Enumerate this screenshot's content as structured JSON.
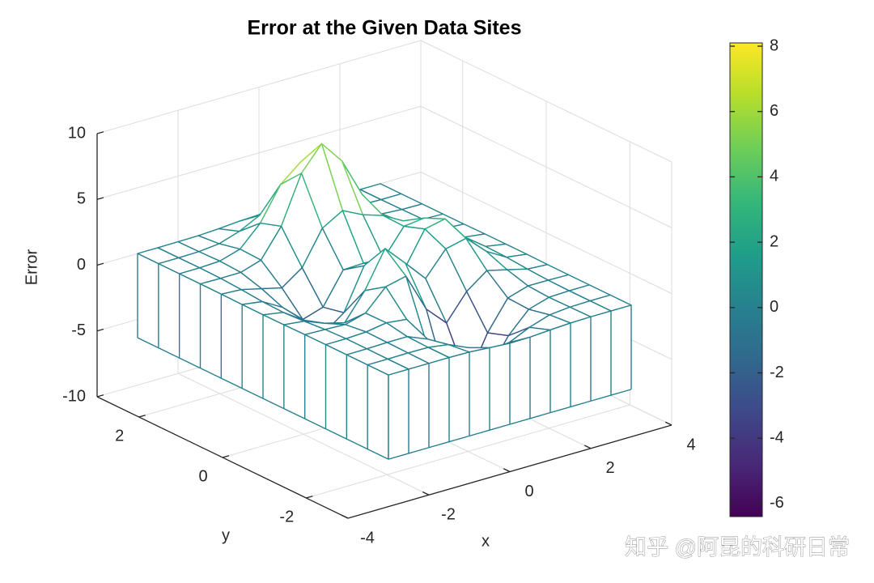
{
  "chart_data": {
    "type": "surface",
    "title": "Error at the Given Data Sites",
    "xlabel": "x",
    "ylabel": "y",
    "zlabel": "Error",
    "x": [
      -3,
      -2.5,
      -2,
      -1.5,
      -1,
      -0.5,
      0,
      0.5,
      1,
      1.5,
      2,
      2.5,
      3
    ],
    "y": [
      -3,
      -2.5,
      -2,
      -1.5,
      -1,
      -0.5,
      0,
      0.5,
      1,
      1.5,
      2,
      2.5,
      3
    ],
    "z": [
      [
        0,
        0,
        0,
        0,
        -0.03,
        -0.14,
        -0.24,
        -0.22,
        -0.11,
        -0.03,
        0,
        0,
        0
      ],
      [
        0,
        0,
        0.02,
        0,
        -0.23,
        -0.91,
        -1.57,
        -1.4,
        -0.69,
        -0.18,
        -0.03,
        0,
        0
      ],
      [
        0,
        0.01,
        0.05,
        0.05,
        -0.58,
        -2.65,
        -4.75,
        -4.36,
        -2.09,
        -0.53,
        -0.06,
        0,
        0
      ],
      [
        0,
        0.01,
        0.08,
        0.33,
        0.15,
        -2.19,
        -5.68,
        -5.76,
        -2.64,
        -0.44,
        0.04,
        0.03,
        0
      ],
      [
        -0.01,
        -0.06,
        -0.13,
        0.3,
        1.86,
        2.22,
        -0.72,
        -2.22,
        -0.27,
        0.88,
        0.5,
        0.11,
        0.01
      ],
      [
        -0.03,
        -0.2,
        -0.8,
        -1.21,
        0.8,
        3.55,
        2,
        0.39,
        2.2,
        2.56,
        1.13,
        0.24,
        0.03
      ],
      [
        -0.04,
        -0.3,
        -1.33,
        -2.77,
        -1.65,
        1.48,
        0.98,
        0.37,
        2.94,
        3.27,
        1.41,
        0.29,
        0.03
      ],
      [
        -0.03,
        -0.25,
        -1.13,
        -2.49,
        -2,
        0.39,
        0.46,
        0.38,
        2.38,
        2.56,
        1.1,
        0.23,
        0.03
      ],
      [
        -0.01,
        -0.11,
        -0.48,
        -0.86,
        0.23,
        2.79,
        3.69,
        2.93,
        2.43,
        1.58,
        0.58,
        0.11,
        0.01
      ],
      [
        0,
        -0.02,
        -0.01,
        0.48,
        2.61,
        6.2,
        8,
        6.25,
        3.26,
        1.18,
        0.29,
        0.05,
        0
      ],
      [
        0,
        0.01,
        0.08,
        0.55,
        2.08,
        4.57,
        5.85,
        4.58,
        2.2,
        0.68,
        0.13,
        0.02,
        0
      ],
      [
        0,
        0,
        0.03,
        0.19,
        0.69,
        1.46,
        1.88,
        1.47,
        0.7,
        0.2,
        0.04,
        0,
        0
      ],
      [
        0,
        0,
        0.01,
        0.03,
        0.11,
        0.23,
        0.3,
        0.23,
        0.11,
        0.03,
        0.01,
        0,
        0
      ]
    ],
    "xlim": [
      -4,
      4
    ],
    "ylim": [
      -3,
      3
    ],
    "zlim": [
      -10,
      10
    ],
    "xticks": [
      -4,
      -2,
      0,
      2,
      4
    ],
    "yticks": [
      -2,
      0,
      2
    ],
    "zticks": [
      -10,
      -5,
      0,
      5,
      10
    ],
    "clim": [
      -6.4,
      8.1
    ],
    "cticks": [
      -6,
      -4,
      -2,
      0,
      2,
      4,
      6,
      8
    ],
    "colormap": [
      "#440154",
      "#482878",
      "#3e4989",
      "#31688e",
      "#26828e",
      "#1f9e89",
      "#35b779",
      "#6ece58",
      "#b5de2b",
      "#fde725"
    ],
    "grid": true,
    "colorbar": "right"
  },
  "watermark": "知乎 @阿昆的科研日常"
}
